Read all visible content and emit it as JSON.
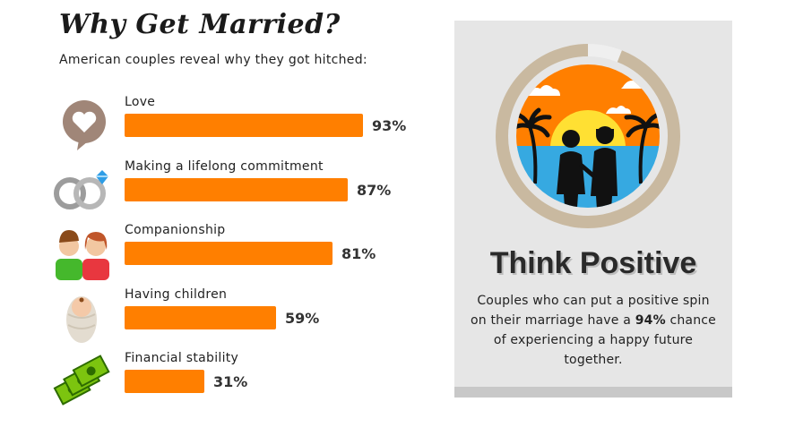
{
  "title": "Why Get Married?",
  "subtitle": "American couples reveal why they got hitched:",
  "chart_data": {
    "type": "bar",
    "orientation": "horizontal",
    "categories": [
      "Love",
      "Making a lifelong commitment",
      "Companionship",
      "Having children",
      "Financial stability"
    ],
    "values": [
      93,
      87,
      81,
      59,
      31
    ],
    "value_labels": [
      "93%",
      "87%",
      "81%",
      "59%",
      "31%"
    ],
    "xlim": [
      0,
      100
    ],
    "bar_color": "#ff7f00",
    "icons": [
      "heart-speech-bubble-icon",
      "wedding-rings-icon",
      "couple-icon",
      "baby-icon",
      "money-icon"
    ]
  },
  "panel": {
    "title": "Think Positive",
    "text_before": "Couples who can put a positive spin on their marriage have a ",
    "highlight": "94%",
    "text_after": " chance of experiencing a happy future together.",
    "ring_progress": 0.94,
    "icon": "beach-couple-icon"
  },
  "colors": {
    "accent": "#ff7f00",
    "panel_bg": "#e6e6e6",
    "ring": "#c9b9a0",
    "sea": "#36a9e1",
    "sun": "#ffe033"
  }
}
